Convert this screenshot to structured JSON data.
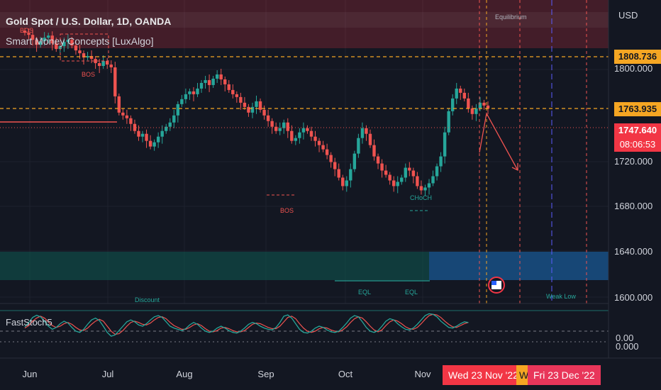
{
  "header": {
    "symbol_title": "Gold Spot / U.S. Dollar, 1D, OANDA",
    "indicator_name": "Smart Money Concepts [LuxAlgo]",
    "currency": "USD",
    "oscillator_name": "FastStoch5"
  },
  "price_tags": {
    "level_top": "1808.736",
    "level_mid": "1763.935",
    "last_price": "1747.640",
    "countdown": "08:06:53"
  },
  "date_tags": {
    "left": "Wed 23 Nov '22",
    "right": "Fri 23 Dec '22",
    "mid_partial": "W"
  },
  "annotations": {
    "equilibrium": "Equilibrium",
    "bos": "BOS",
    "choch": "CHoCH",
    "eql": "EQL",
    "discount": "Discount",
    "weak_low": "Weak Low"
  },
  "colors": {
    "background": "#131722",
    "bull": "#26a69a",
    "bear": "#ef5350",
    "level_line": "#f5a623",
    "stoch_k": "#26a69a",
    "stoch_d": "#ef5350"
  },
  "chart_data": {
    "type": "candlestick",
    "title": "Gold Spot / U.S. Dollar, 1D, OANDA",
    "x_tick_labels": [
      "Jun",
      "Jul",
      "Aug",
      "Sep",
      "Oct",
      "Nov"
    ],
    "y_tick_labels": [
      "1800.000",
      "1720.000",
      "1680.000",
      "1640.000",
      "1600.000"
    ],
    "oscillator_tick_labels": [
      "0.00",
      "0.000"
    ],
    "ylim": [
      1595,
      1860
    ],
    "horizontal_levels": [
      1808.736,
      1763.935,
      1747.64
    ],
    "close_series": [
      1855,
      1852,
      1845,
      1838,
      1843,
      1848,
      1851,
      1840,
      1832,
      1836,
      1842,
      1845,
      1837,
      1830,
      1826,
      1820,
      1822,
      1818,
      1812,
      1808,
      1815,
      1810,
      1806,
      1765,
      1742,
      1738,
      1734,
      1726,
      1716,
      1708,
      1712,
      1702,
      1694,
      1700,
      1708,
      1716,
      1722,
      1728,
      1738,
      1754,
      1761,
      1768,
      1772,
      1768,
      1776,
      1784,
      1788,
      1781,
      1790,
      1796,
      1789,
      1782,
      1774,
      1768,
      1764,
      1756,
      1750,
      1742,
      1750,
      1758,
      1746,
      1738,
      1730,
      1722,
      1716,
      1720,
      1728,
      1716,
      1702,
      1706,
      1714,
      1720,
      1716,
      1708,
      1702,
      1696,
      1690,
      1682,
      1672,
      1662,
      1650,
      1638,
      1646,
      1662,
      1684,
      1706,
      1720,
      1712,
      1696,
      1680,
      1670,
      1660,
      1654,
      1646,
      1638,
      1644,
      1650,
      1664,
      1660,
      1652,
      1638,
      1632,
      1636,
      1642,
      1652,
      1666,
      1680,
      1714,
      1744,
      1762,
      1776,
      1770,
      1762,
      1748,
      1740,
      1748,
      1756,
      1752,
      1747.64
    ],
    "stoch_k": [
      48,
      62,
      78,
      85,
      80,
      66,
      50,
      40,
      46,
      58,
      66,
      60,
      46,
      34,
      30,
      40,
      56,
      70,
      76,
      68,
      50,
      30,
      18,
      22,
      36,
      50,
      64,
      70,
      64,
      54,
      50,
      58,
      70,
      80,
      84,
      78,
      64,
      50,
      44,
      40,
      36,
      42,
      54,
      62,
      56,
      44,
      34,
      30,
      34,
      44,
      50,
      44,
      36,
      30,
      28,
      34,
      44,
      56,
      62,
      58,
      50,
      44,
      40,
      38,
      46,
      62,
      82,
      86,
      76,
      58,
      40,
      30,
      28,
      34,
      44,
      50,
      46,
      38,
      32,
      30,
      34,
      46,
      60,
      76,
      84,
      80,
      64,
      46,
      34,
      30,
      36,
      50,
      66,
      74,
      70,
      58,
      48,
      40,
      38,
      44,
      56,
      70,
      84,
      90,
      88,
      80,
      66,
      56,
      46,
      44,
      50,
      58,
      64,
      62
    ],
    "stoch_d": [
      44,
      52,
      66,
      76,
      82,
      76,
      64,
      52,
      46,
      50,
      58,
      62,
      56,
      46,
      38,
      36,
      44,
      56,
      66,
      72,
      66,
      50,
      34,
      24,
      26,
      36,
      50,
      62,
      66,
      62,
      56,
      54,
      60,
      70,
      78,
      80,
      74,
      62,
      52,
      46,
      40,
      40,
      46,
      54,
      58,
      52,
      42,
      34,
      32,
      36,
      44,
      46,
      42,
      36,
      32,
      32,
      36,
      46,
      56,
      60,
      58,
      52,
      46,
      42,
      42,
      50,
      64,
      78,
      82,
      74,
      58,
      44,
      34,
      30,
      34,
      42,
      46,
      44,
      38,
      34,
      32,
      38,
      48,
      62,
      74,
      80,
      76,
      64,
      50,
      38,
      32,
      38,
      52,
      64,
      70,
      66,
      58,
      48,
      42,
      40,
      46,
      58,
      72,
      84,
      88,
      86,
      78,
      66,
      56,
      48,
      46,
      52,
      58,
      62
    ]
  }
}
